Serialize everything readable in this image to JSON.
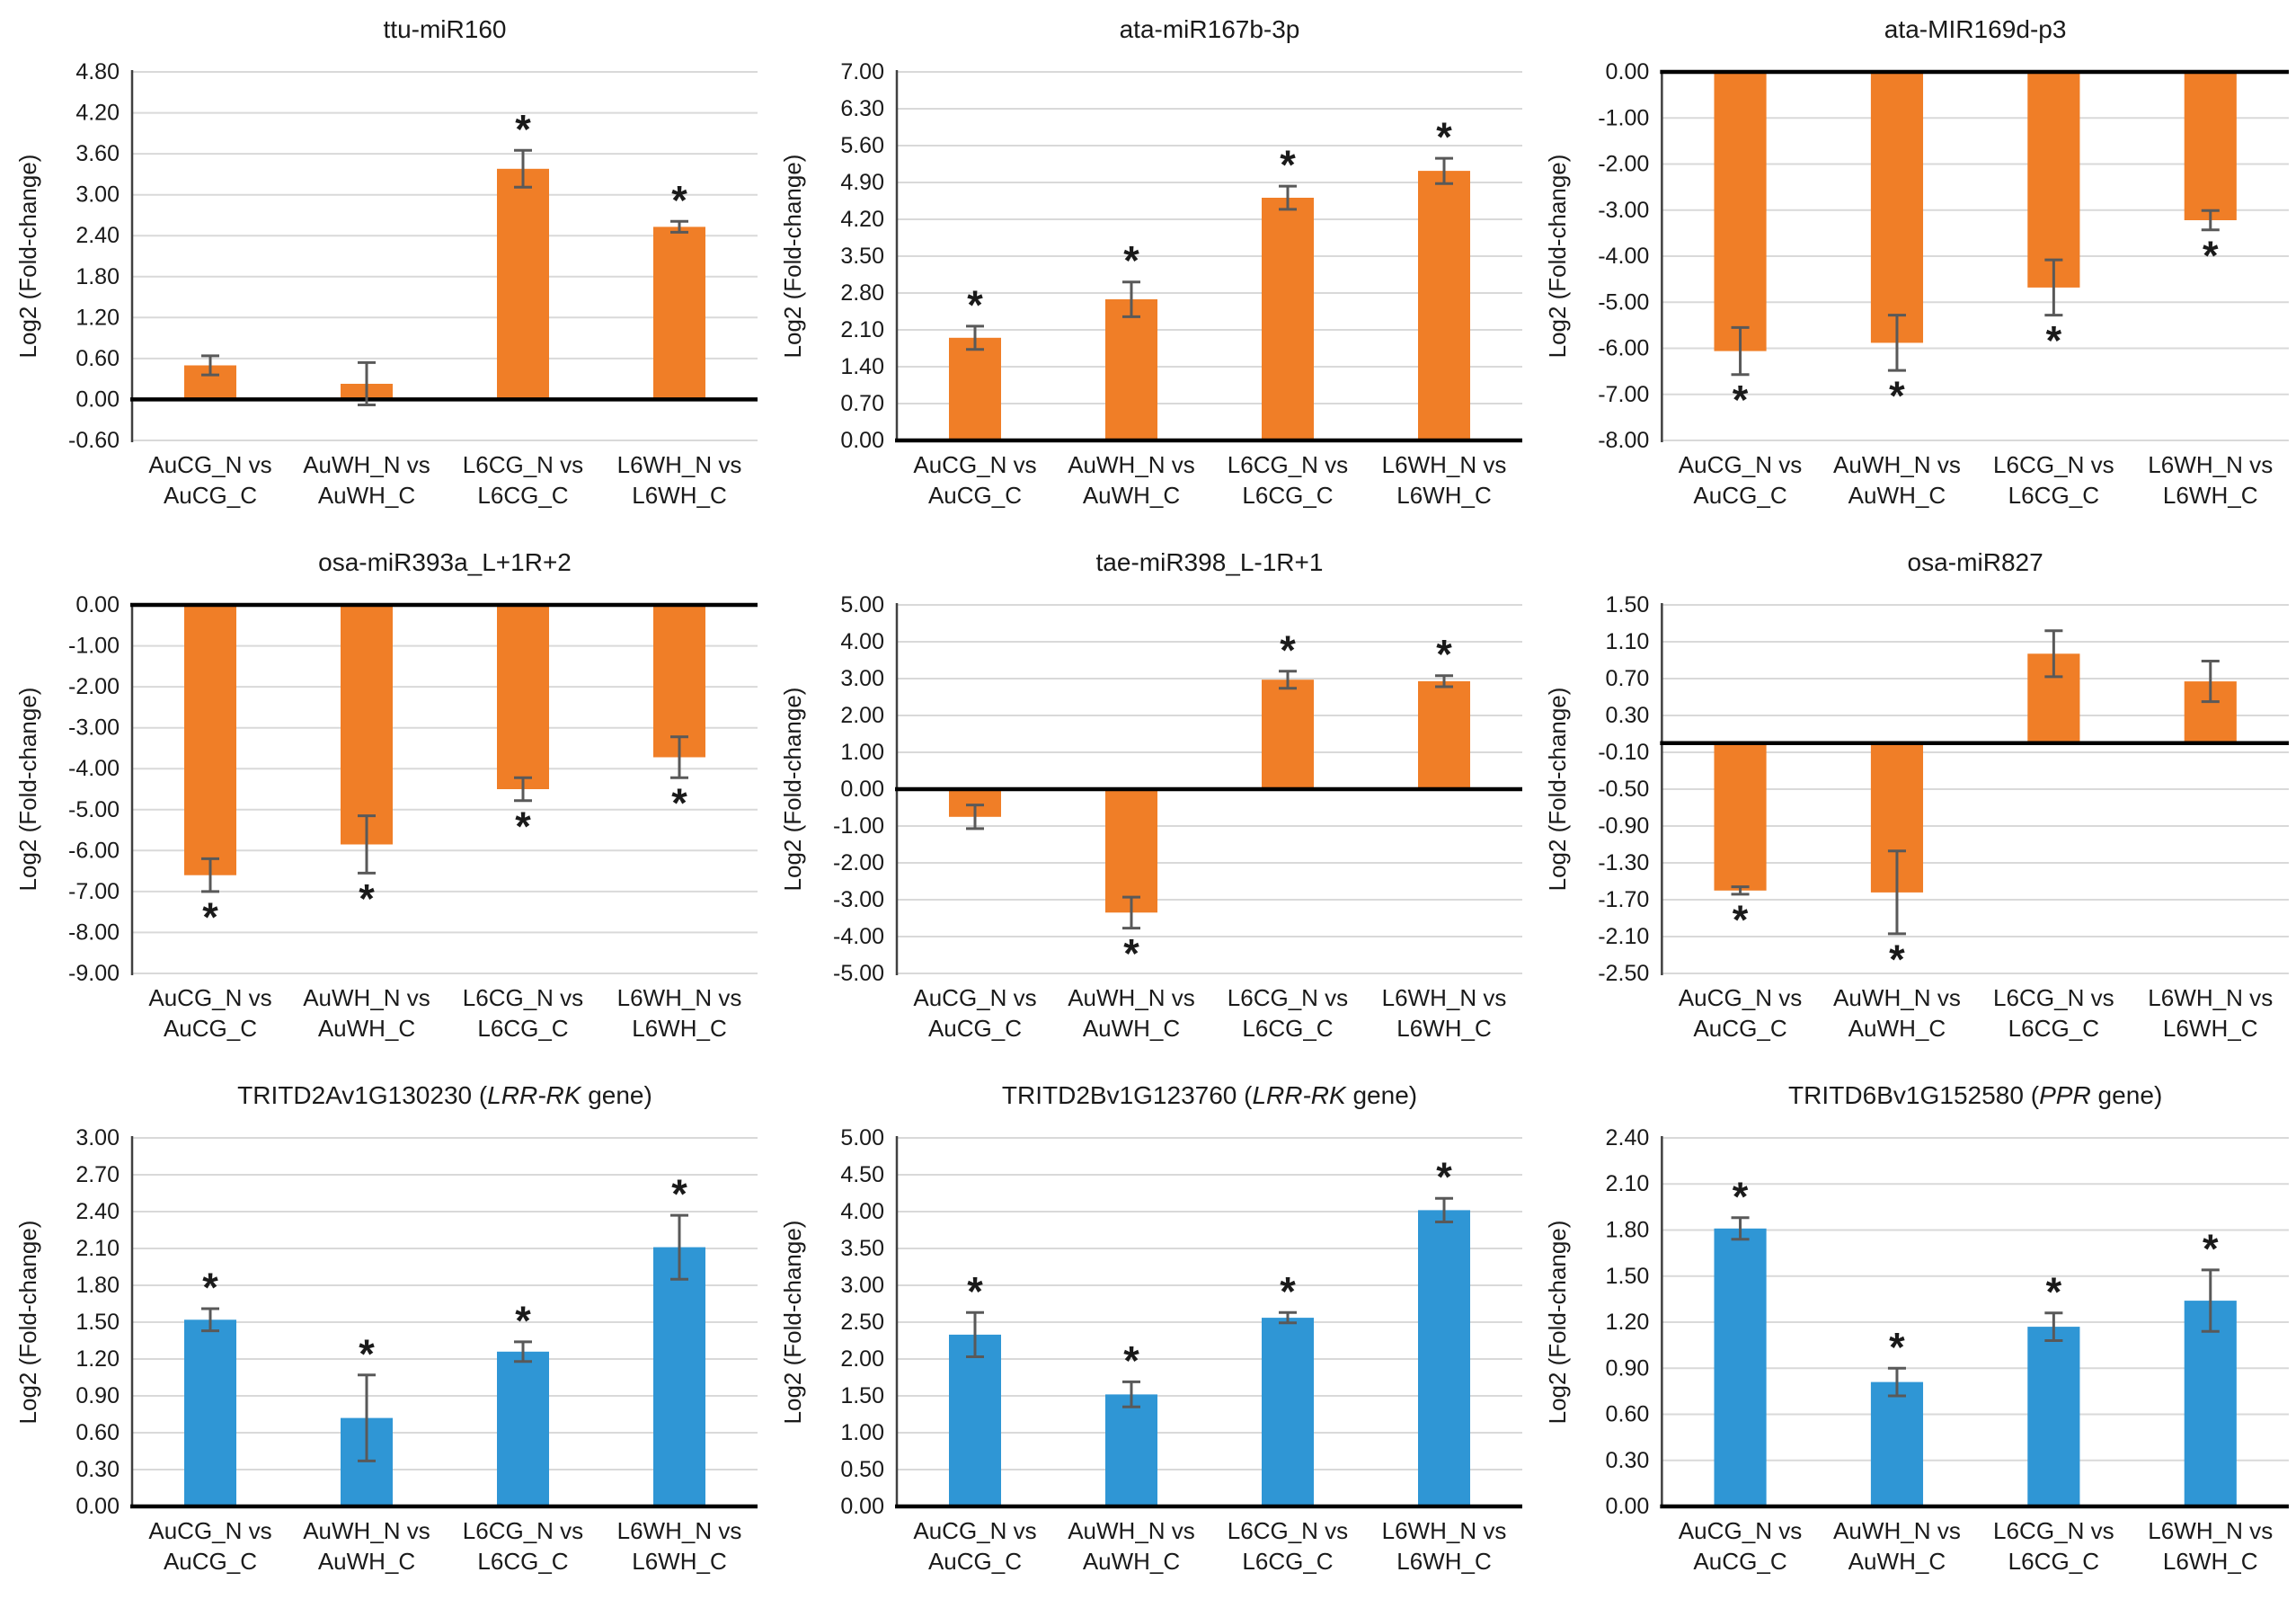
{
  "figure": {
    "ylabel": "Log2 (Fold-change)",
    "significance_marker": "*",
    "categories": [
      "AuCG_N vs AuCG_C",
      "AuWH_N vs AuWH_C",
      "L6CG_N vs L6CG_C",
      "L6WH_N vs L6WH_C"
    ],
    "categories_line1": [
      "AuCG_N vs",
      "AuWH_N vs",
      "L6CG_N vs",
      "L6WH_N vs"
    ],
    "categories_line2": [
      "AuCG_C",
      "AuWH_C",
      "L6CG_C",
      "L6WH_C"
    ],
    "colors": {
      "mirna_bar_orange": "#F07E27",
      "gene_bar_blue": "#2F96D5",
      "error_bar": "#595959",
      "gridline": "#D9D9D9",
      "axis_line": "#000000",
      "spine": "#404040",
      "text": "#1A1A1A"
    }
  },
  "chart_data": [
    {
      "id": "ttu-miR160",
      "type": "bar",
      "color": "mirna_bar_orange",
      "title_parts": [
        {
          "text": "ttu-miR160",
          "italic": false
        }
      ],
      "ymax": 4.8,
      "ymin": -0.6,
      "ystep": 0.6,
      "categories": [
        "AuCG_N vs AuCG_C",
        "AuWH_N vs AuWH_C",
        "L6CG_N vs L6CG_C",
        "L6WH_N vs L6WH_C"
      ],
      "values": [
        0.5,
        0.23,
        3.38,
        2.53
      ],
      "errors": [
        0.14,
        0.31,
        0.27,
        0.08
      ],
      "significant": [
        false,
        false,
        true,
        true
      ]
    },
    {
      "id": "ata-miR167b-3p",
      "type": "bar",
      "color": "mirna_bar_orange",
      "title_parts": [
        {
          "text": "ata-miR167b-3p",
          "italic": false
        }
      ],
      "ymax": 7.0,
      "ymin": 0.0,
      "ystep": 0.7,
      "categories": [
        "AuCG_N vs AuCG_C",
        "AuWH_N vs AuWH_C",
        "L6CG_N vs L6CG_C",
        "L6WH_N vs L6WH_C"
      ],
      "values": [
        1.95,
        2.68,
        4.61,
        5.12
      ],
      "errors": [
        0.22,
        0.33,
        0.22,
        0.24
      ],
      "significant": [
        true,
        true,
        true,
        true
      ]
    },
    {
      "id": "ata-MIR169d-p3",
      "type": "bar",
      "color": "mirna_bar_orange",
      "title_parts": [
        {
          "text": "ata-MIR169d-p3",
          "italic": false
        }
      ],
      "ymax": 0.0,
      "ymin": -8.0,
      "ystep": 1.0,
      "categories": [
        "AuCG_N vs AuCG_C",
        "AuWH_N vs AuWH_C",
        "L6CG_N vs L6CG_C",
        "L6WH_N vs L6WH_C"
      ],
      "values": [
        -6.06,
        -5.88,
        -4.68,
        -3.22
      ],
      "errors": [
        0.51,
        0.6,
        0.6,
        0.21
      ],
      "significant": [
        true,
        true,
        true,
        true
      ]
    },
    {
      "id": "osa-miR393a_L+1R+2",
      "type": "bar",
      "color": "mirna_bar_orange",
      "title_parts": [
        {
          "text": "osa-miR393a_L+1R+2",
          "italic": false
        }
      ],
      "ymax": 0.0,
      "ymin": -9.0,
      "ystep": 1.0,
      "categories": [
        "AuCG_N vs AuCG_C",
        "AuWH_N vs AuWH_C",
        "L6CG_N vs L6CG_C",
        "L6WH_N vs L6WH_C"
      ],
      "values": [
        -6.6,
        -5.85,
        -4.5,
        -3.72
      ],
      "errors": [
        0.4,
        0.7,
        0.28,
        0.5
      ],
      "significant": [
        true,
        true,
        true,
        true
      ]
    },
    {
      "id": "tae-miR398_L-1R+1",
      "type": "bar",
      "color": "mirna_bar_orange",
      "title_parts": [
        {
          "text": "tae-miR398_L-1R+1",
          "italic": false
        }
      ],
      "ymax": 5.0,
      "ymin": -5.0,
      "ystep": 1.0,
      "categories": [
        "AuCG_N vs AuCG_C",
        "AuWH_N vs AuWH_C",
        "L6CG_N vs L6CG_C",
        "L6WH_N vs L6WH_C"
      ],
      "values": [
        -0.75,
        -3.35,
        2.97,
        2.93
      ],
      "errors": [
        0.32,
        0.42,
        0.23,
        0.15
      ],
      "significant": [
        false,
        true,
        true,
        true
      ]
    },
    {
      "id": "osa-miR827",
      "type": "bar",
      "color": "mirna_bar_orange",
      "title_parts": [
        {
          "text": "osa-miR827",
          "italic": false
        }
      ],
      "ymax": 1.5,
      "ymin": -2.5,
      "ystep": 0.4,
      "categories": [
        "AuCG_N vs AuCG_C",
        "AuWH_N vs AuWH_C",
        "L6CG_N vs L6CG_C",
        "L6WH_N vs L6WH_C"
      ],
      "values": [
        -1.6,
        -1.62,
        0.97,
        0.67
      ],
      "errors": [
        0.04,
        0.45,
        0.25,
        0.22
      ],
      "significant": [
        true,
        true,
        false,
        false
      ]
    },
    {
      "id": "TRITD2Av1G130230",
      "type": "bar",
      "color": "gene_bar_blue",
      "title_parts": [
        {
          "text": "TRITD2Av1G130230 (",
          "italic": false
        },
        {
          "text": "LRR-RK",
          "italic": true
        },
        {
          "text": " gene)",
          "italic": false
        }
      ],
      "ymax": 3.0,
      "ymin": 0.0,
      "ystep": 0.3,
      "categories": [
        "AuCG_N vs AuCG_C",
        "AuWH_N vs AuWH_C",
        "L6CG_N vs L6CG_C",
        "L6WH_N vs L6WH_C"
      ],
      "values": [
        1.52,
        0.72,
        1.26,
        2.11
      ],
      "errors": [
        0.09,
        0.35,
        0.08,
        0.26
      ],
      "significant": [
        true,
        true,
        true,
        true
      ]
    },
    {
      "id": "TRITD2Bv1G123760",
      "type": "bar",
      "color": "gene_bar_blue",
      "title_parts": [
        {
          "text": "TRITD2Bv1G123760 (",
          "italic": false
        },
        {
          "text": "LRR-RK",
          "italic": true
        },
        {
          "text": " gene)",
          "italic": false
        }
      ],
      "ymax": 5.0,
      "ymin": 0.0,
      "ystep": 0.5,
      "categories": [
        "AuCG_N vs AuCG_C",
        "AuWH_N vs AuWH_C",
        "L6CG_N vs L6CG_C",
        "L6WH_N vs L6WH_C"
      ],
      "values": [
        2.33,
        1.52,
        2.56,
        4.02
      ],
      "errors": [
        0.3,
        0.17,
        0.07,
        0.16
      ],
      "significant": [
        true,
        true,
        true,
        true
      ]
    },
    {
      "id": "TRITD6Bv1G152580",
      "type": "bar",
      "color": "gene_bar_blue",
      "title_parts": [
        {
          "text": "TRITD6Bv1G152580 (",
          "italic": false
        },
        {
          "text": "PPR",
          "italic": true
        },
        {
          "text": " gene)",
          "italic": false
        }
      ],
      "ymax": 2.4,
      "ymin": 0.0,
      "ystep": 0.3,
      "categories": [
        "AuCG_N vs AuCG_C",
        "AuWH_N vs AuWH_C",
        "L6CG_N vs L6CG_C",
        "L6WH_N vs L6WH_C"
      ],
      "values": [
        1.81,
        0.81,
        1.17,
        1.34
      ],
      "errors": [
        0.07,
        0.09,
        0.09,
        0.2
      ],
      "significant": [
        true,
        true,
        true,
        true
      ]
    }
  ]
}
